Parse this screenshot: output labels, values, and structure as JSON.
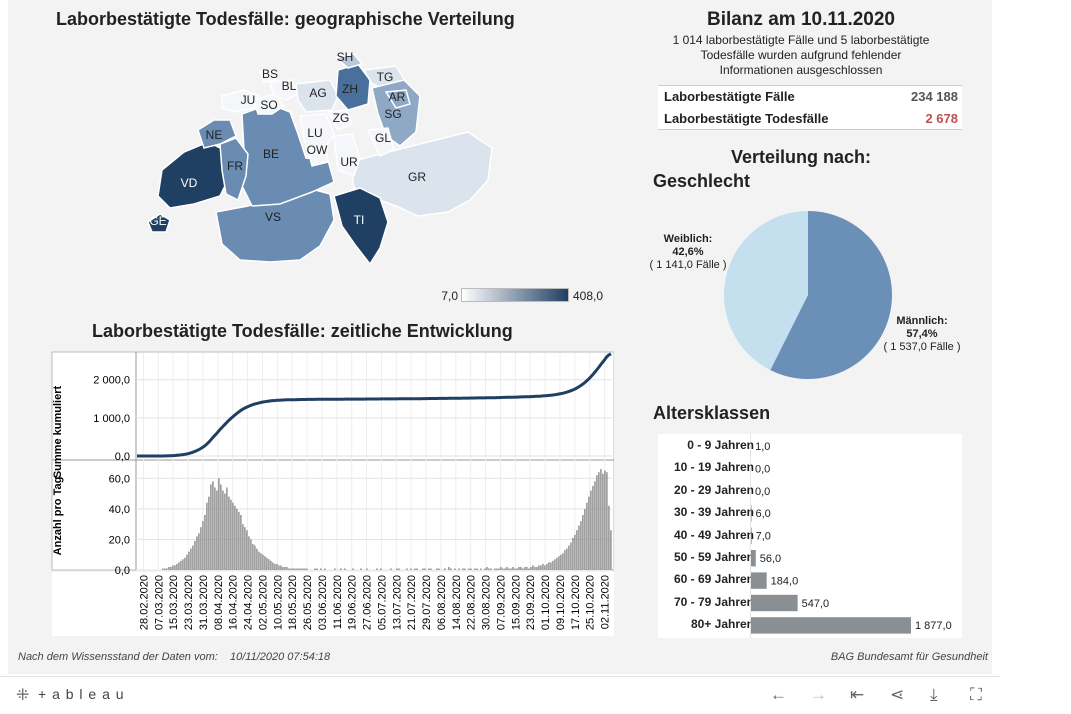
{
  "map": {
    "title": "Laborbestätigte Todesfälle: geographische Verteilung",
    "legend_min": "7,0",
    "legend_max": "408,0",
    "color_low": "#e2e8f0",
    "color_high": "#1f3f63",
    "cantons": [
      "SH",
      "BS",
      "BL",
      "TG",
      "JU",
      "SO",
      "AG",
      "ZH",
      "AR",
      "SG",
      "ZG",
      "NE",
      "LU",
      "GL",
      "FR",
      "BE",
      "OW",
      "UR",
      "GR",
      "VD",
      "GE",
      "VS",
      "TI"
    ]
  },
  "bilanz": {
    "title": "Bilanz am 10.11.2020",
    "note_line1": "1 014 laborbestätigte Fälle und 5 laborbestätigte",
    "note_line2": "Todesfälle wurden aufgrund fehlender",
    "note_line3": "Informationen ausgeschlossen",
    "faelle_label": "Laborbestätigte Fälle",
    "faelle_value": "234 188",
    "tode_label": "Laborbestätigte Todesfälle",
    "tode_value": "2 678",
    "tode_color": "#c0504d"
  },
  "verteilung": {
    "title": "Verteilung nach:",
    "geschlecht": "Geschlecht",
    "female_label": "Weiblich:",
    "female_pct": "42,6%",
    "female_count": "( 1 141,0 Fälle )",
    "male_label": "Männlich:",
    "male_pct": "57,4%",
    "male_count": "( 1 537,0 Fälle )",
    "female_color": "#c4e0ef",
    "male_color": "#6a90b8"
  },
  "zeit": {
    "title": "Laborbestätigte Todesfälle: zeitliche Entwicklung",
    "ylabel_top": "Summe kumuliert",
    "ylabel_bottom": "Anzahl pro Tag",
    "line_color": "#1f3f63",
    "bar_color": "#8a8a8a"
  },
  "alters": {
    "title": "Altersklassen",
    "bar_color": "#8a8f93"
  },
  "footer": {
    "left": "Nach dem Wissensstand der Daten vom:",
    "date": "10/11/2020 07:54:18",
    "right": "BAG Bundesamt für Gesundheit"
  },
  "toolbar": {
    "brand": "+ a b l e a u"
  },
  "chart_data": [
    {
      "type": "pie",
      "title": "Geschlecht",
      "categories": [
        "Weiblich",
        "Männlich"
      ],
      "values": [
        1141,
        1537
      ]
    },
    {
      "type": "bar",
      "title": "Altersklassen",
      "categories": [
        "0 - 9 Jahren",
        "10 - 19 Jahren",
        "20 - 29 Jahren",
        "30 - 39 Jahren",
        "40 - 49 Jahren",
        "50 - 59 Jahren",
        "60 - 69 Jahren",
        "70 - 79 Jahren",
        "80+ Jahren"
      ],
      "values": [
        1,
        0,
        0,
        6,
        7,
        56,
        184,
        547,
        1877
      ],
      "labels": [
        "1,0",
        "0,0",
        "0,0",
        "6,0",
        "7,0",
        "56,0",
        "184,0",
        "547,0",
        "1 877,0"
      ]
    },
    {
      "type": "line",
      "ylabel": "Summe kumuliert",
      "yticks": [
        "0,0",
        "1 000,0",
        "2 000,0"
      ],
      "ylim": [
        0,
        2700
      ],
      "x": [
        "28.02.2020",
        "15.03.2020",
        "31.03.2020",
        "15.04.2020",
        "01.05.2020",
        "20.05.2020",
        "01.07.2020",
        "01.09.2020",
        "01.10.2020",
        "17.10.2020",
        "25.10.2020",
        "02.11.2020",
        "09.11.2020"
      ],
      "values": [
        0,
        10,
        350,
        1050,
        1500,
        1620,
        1640,
        1660,
        1720,
        1800,
        1900,
        2200,
        2678
      ]
    },
    {
      "type": "bar",
      "ylabel": "Anzahl pro Tag",
      "yticks": [
        "0,0",
        "20,0",
        "40,0",
        "60,0"
      ],
      "ylim": [
        0,
        70
      ],
      "xticks": [
        "28.02.2020",
        "07.03.2020",
        "15.03.2020",
        "23.03.2020",
        "31.03.2020",
        "08.04.2020",
        "16.04.2020",
        "24.04.2020",
        "02.05.2020",
        "10.05.2020",
        "18.05.2020",
        "26.05.2020",
        "03.06.2020",
        "11.06.2020",
        "19.06.2020",
        "27.06.2020",
        "05.07.2020",
        "13.07.2020",
        "21.07.2020",
        "29.07.2020",
        "06.08.2020",
        "14.08.2020",
        "22.08.2020",
        "30.08.2020",
        "07.09.2020",
        "15.09.2020",
        "23.09.2020",
        "01.10.2020",
        "09.10.2020",
        "17.10.2020",
        "25.10.2020",
        "02.11.2020"
      ],
      "values": [
        0,
        0,
        0,
        0,
        0,
        0,
        0,
        0,
        0,
        0,
        0,
        0,
        0,
        1,
        1,
        1,
        2,
        2,
        3,
        3,
        4,
        5,
        6,
        7,
        8,
        10,
        12,
        14,
        16,
        19,
        22,
        24,
        28,
        32,
        36,
        44,
        48,
        56,
        58,
        54,
        52,
        60,
        56,
        52,
        50,
        54,
        48,
        46,
        44,
        42,
        40,
        38,
        36,
        30,
        28,
        26,
        22,
        20,
        17,
        16,
        14,
        12,
        11,
        10,
        9,
        8,
        7,
        6,
        5,
        4,
        4,
        3,
        3,
        2,
        2,
        2,
        1,
        1,
        1,
        1,
        1,
        1,
        1,
        1,
        1,
        1,
        0,
        0,
        0,
        1,
        1,
        0,
        1,
        0,
        1,
        0,
        0,
        0,
        0,
        1,
        0,
        0,
        1,
        0,
        1,
        0,
        0,
        0,
        1,
        0,
        0,
        0,
        1,
        0,
        0,
        1,
        0,
        0,
        0,
        0,
        1,
        0,
        1,
        0,
        0,
        0,
        0,
        1,
        0,
        0,
        1,
        1,
        0,
        0,
        0,
        1,
        0,
        1,
        0,
        1,
        1,
        0,
        0,
        1,
        1,
        0,
        1,
        1,
        0,
        0,
        1,
        1,
        0,
        0,
        1,
        0,
        2,
        1,
        0,
        1,
        0,
        1,
        0,
        1,
        1,
        0,
        1,
        1,
        0,
        1,
        1,
        0,
        1,
        0,
        1,
        2,
        1,
        1,
        0,
        1,
        1,
        1,
        2,
        1,
        1,
        2,
        1,
        1,
        2,
        1,
        1,
        2,
        2,
        1,
        2,
        2,
        1,
        2,
        3,
        2,
        2,
        3,
        3,
        4,
        3,
        4,
        5,
        5,
        6,
        7,
        8,
        9,
        10,
        11,
        13,
        14,
        16,
        18,
        21,
        23,
        26,
        29,
        32,
        36,
        40,
        44,
        48,
        52,
        55,
        58,
        62,
        64,
        66,
        63,
        65,
        64,
        42,
        26
      ]
    }
  ]
}
